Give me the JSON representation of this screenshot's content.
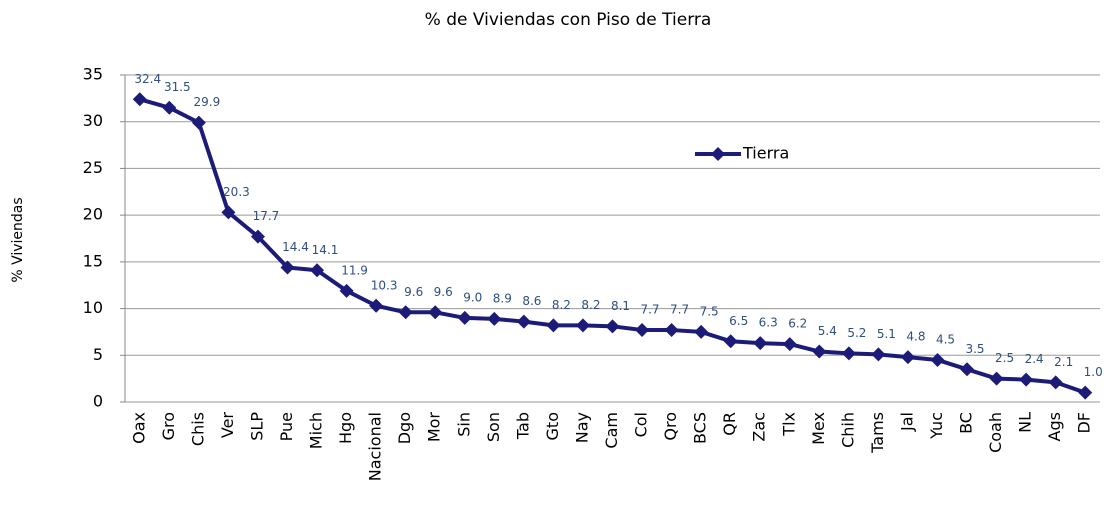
{
  "chart_data": {
    "type": "line",
    "title": "% de Viviendas con Piso de Tierra",
    "y_label": "% Viviendas",
    "categories": [
      "Oax",
      "Gro",
      "Chis",
      "Ver",
      "SLP",
      "Pue",
      "Mich",
      "Hgo",
      "Nacional",
      "Dgo",
      "Mor",
      "Sin",
      "Son",
      "Tab",
      "Gto",
      "Nay",
      "Cam",
      "Col",
      "Qro",
      "BCS",
      "QR",
      "Zac",
      "Tlx",
      "Mex",
      "Chih",
      "Tams",
      "Jal",
      "Yuc",
      "BC",
      "Coah",
      "NL",
      "Ags",
      "DF"
    ],
    "series": [
      {
        "name": "Tierra",
        "color": "#1c1c78",
        "values": [
          32.4,
          31.5,
          29.9,
          20.3,
          17.7,
          14.4,
          14.1,
          11.9,
          10.3,
          9.6,
          9.6,
          9.0,
          8.9,
          8.6,
          8.2,
          8.2,
          8.1,
          7.7,
          7.7,
          7.5,
          6.5,
          6.3,
          6.2,
          5.4,
          5.2,
          5.1,
          4.8,
          4.5,
          3.5,
          2.5,
          2.4,
          2.1,
          1.0
        ],
        "value_labels": [
          "32.4",
          "31.5",
          "29.9",
          "20.3",
          "17.7",
          "14.4",
          "14.1",
          "11.9",
          "10.3",
          "9.6",
          "9.6",
          "9.0",
          "8.9",
          "8.6",
          "8.2",
          "8.2",
          "8.1",
          "7.7",
          "7.7",
          "7.5",
          "6.5",
          "6.3",
          "6.2",
          "5.4",
          "5.2",
          "5.1",
          "4.8",
          "4.5",
          "3.5",
          "2.5",
          "2.4",
          "2.1",
          "1.0"
        ]
      }
    ],
    "ylim": [
      0,
      35
    ],
    "yticks": [
      0,
      5,
      10,
      15,
      20,
      25,
      30,
      35
    ],
    "grid": true,
    "legend": "upper right"
  }
}
